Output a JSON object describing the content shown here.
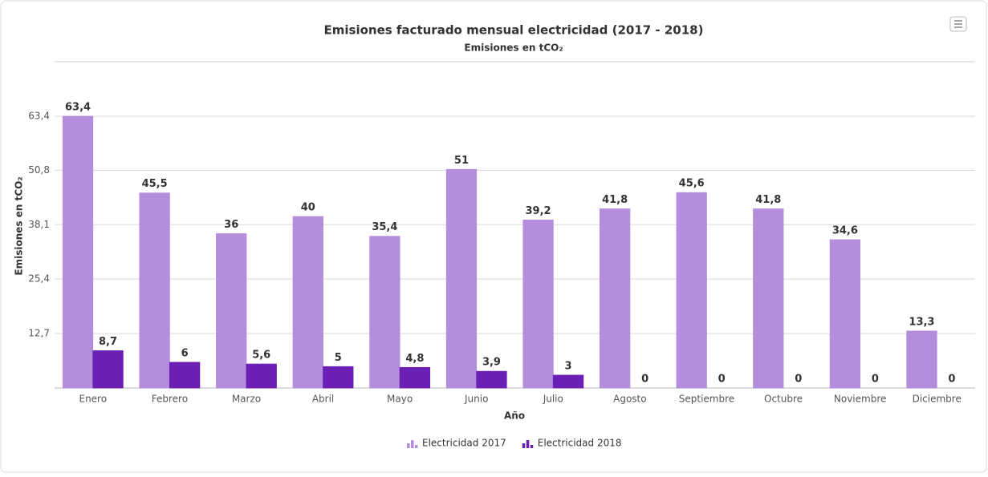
{
  "chart_data": {
    "type": "bar",
    "title": "Emisiones facturado mensual electricidad (2017 - 2018)",
    "subtitle": "Emisiones en tCO₂",
    "y_label": "Emisiones en tCO₂",
    "x_label": "Año",
    "categories": [
      "Enero",
      "Febrero",
      "Marzo",
      "Abril",
      "Mayo",
      "Junio",
      "Julio",
      "Agosto",
      "Septiembre",
      "Octubre",
      "Noviembre",
      "Diciembre"
    ],
    "series": [
      {
        "name": "Electricidad 2017",
        "color": "#b48ddc",
        "values": [
          63.4,
          45.5,
          36,
          40,
          35.4,
          51,
          39.2,
          41.8,
          45.6,
          41.8,
          34.6,
          13.3
        ],
        "value_labels": [
          "63,4",
          "45,5",
          "36",
          "40",
          "35,4",
          "51",
          "39,2",
          "41,8",
          "45,6",
          "41,8",
          "34,6",
          "13,3"
        ]
      },
      {
        "name": "Electricidad 2018",
        "color": "#6a1fb5",
        "values": [
          8.7,
          6,
          5.6,
          5,
          4.8,
          3.9,
          3,
          0,
          0,
          0,
          0,
          0
        ],
        "value_labels": [
          "8,7",
          "6",
          "5,6",
          "5",
          "4,8",
          "3,9",
          "3",
          "0",
          "0",
          "0",
          "0",
          "0"
        ]
      }
    ],
    "ylim": [
      0,
      63.4
    ],
    "yticks": [
      {
        "value": 12.7,
        "label": "12,7"
      },
      {
        "value": 25.4,
        "label": "25,4"
      },
      {
        "value": 38.1,
        "label": "38,1"
      },
      {
        "value": 50.8,
        "label": "50,8"
      },
      {
        "value": 63.4,
        "label": "63,4"
      }
    ],
    "grid": true
  }
}
